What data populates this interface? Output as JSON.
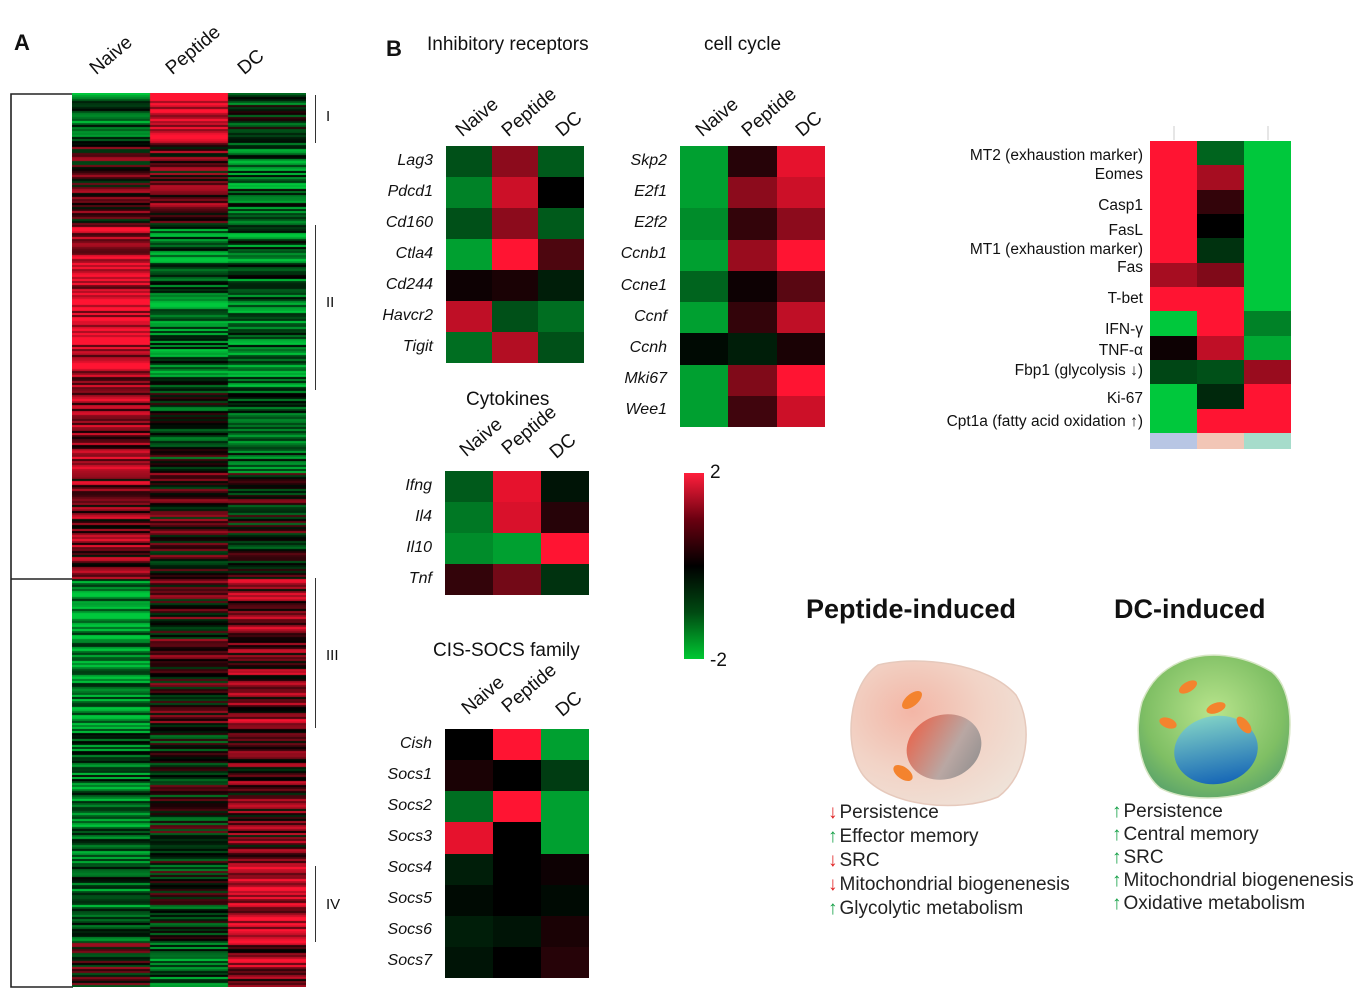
{
  "panel_a": {
    "letter": "A",
    "columns": [
      "Naive",
      "Peptide",
      "DC"
    ],
    "clusters": [
      "I",
      "II",
      "III",
      "IV"
    ]
  },
  "panel_b": {
    "letter": "B",
    "inhibitory": {
      "title": "Inhibitory receptors",
      "columns": [
        "Naive",
        "Peptide",
        "DC"
      ],
      "rows": [
        "Lag3",
        "Pdcd1",
        "Cd160",
        "Ctla4",
        "Cd244",
        "Havcr2",
        "Tigit"
      ],
      "values": [
        [
          -0.8,
          1.1,
          -0.9
        ],
        [
          -1.3,
          1.6,
          0.0
        ],
        [
          -0.8,
          1.1,
          -0.9
        ],
        [
          -1.6,
          2.0,
          0.6
        ],
        [
          0.1,
          0.2,
          -0.3
        ],
        [
          1.5,
          -0.8,
          -1.1
        ],
        [
          -1.1,
          1.4,
          -0.8
        ]
      ]
    },
    "cytokines": {
      "title": "Cytokines",
      "columns": [
        "Naive",
        "Peptide",
        "DC"
      ],
      "rows": [
        "Ifng",
        "Il4",
        "Il10",
        "Tnf"
      ],
      "values": [
        [
          -0.9,
          1.8,
          -0.2
        ],
        [
          -1.2,
          1.7,
          0.3
        ],
        [
          -1.4,
          -1.6,
          2.0
        ],
        [
          0.4,
          0.9,
          -0.5
        ]
      ]
    },
    "socs": {
      "title": "CIS-SOCS family",
      "columns": [
        "Naive",
        "Peptide",
        "DC"
      ],
      "rows": [
        "Cish",
        "Socs1",
        "Socs2",
        "Socs3",
        "Socs4",
        "Socs5",
        "Socs6",
        "Socs7"
      ],
      "values": [
        [
          0.0,
          2.0,
          -1.6
        ],
        [
          0.2,
          0.0,
          -0.6
        ],
        [
          -1.1,
          2.0,
          -1.6
        ],
        [
          1.8,
          0.0,
          -1.6
        ],
        [
          -0.3,
          0.0,
          0.1
        ],
        [
          -0.1,
          0.0,
          -0.1
        ],
        [
          -0.3,
          -0.2,
          0.2
        ],
        [
          -0.2,
          0.0,
          0.3
        ]
      ]
    },
    "cell_cycle": {
      "title": "cell cycle",
      "columns": [
        "Naive",
        "Peptide",
        "DC"
      ],
      "rows": [
        "Skp2",
        "E2f1",
        "E2f2",
        "Ccnb1",
        "Ccne1",
        "Ccnf",
        "Ccnh",
        "Mki67",
        "Wee1"
      ],
      "values": [
        [
          -1.6,
          0.3,
          1.8
        ],
        [
          -1.6,
          1.1,
          1.6
        ],
        [
          -1.4,
          0.4,
          1.1
        ],
        [
          -1.6,
          1.2,
          2.0
        ],
        [
          -1.0,
          0.1,
          0.7
        ],
        [
          -1.6,
          0.4,
          1.5
        ],
        [
          -0.1,
          -0.3,
          0.2
        ],
        [
          -1.6,
          1.0,
          2.0
        ],
        [
          -1.6,
          0.5,
          1.6
        ]
      ]
    },
    "colorbar": {
      "max_label": "2",
      "min_label": "-2",
      "min": -2,
      "max": 2,
      "colors": [
        "#00c832",
        "#000000",
        "#ff1f3c"
      ]
    }
  },
  "exhaustion_heatmap": {
    "labels": [
      "MT2  (exhaustion  marker)",
      "Eomes",
      "Casp1",
      "FasL",
      "MT1  (exhaustion  marker)",
      "Fas",
      "T-bet",
      "IFN-γ",
      "TNF-α",
      "Fbp1  (glycolysis ↓)",
      "Ki-67",
      "Cpt1a  (fatty acid oxidation  ↑)"
    ],
    "values": [
      [
        2.0,
        -1.0,
        -2.0
      ],
      [
        2.0,
        1.3,
        -2.0
      ],
      [
        2.0,
        0.4,
        -2.0
      ],
      [
        2.0,
        0.0,
        -2.0
      ],
      [
        2.0,
        -0.5,
        -2.0
      ],
      [
        1.3,
        1.0,
        -2.0
      ],
      [
        2.0,
        2.0,
        -2.0
      ],
      [
        -2.0,
        2.0,
        -1.3
      ],
      [
        0.1,
        1.5,
        -1.7
      ],
      [
        -0.7,
        -0.8,
        1.2
      ],
      [
        -2.0,
        -0.4,
        2.0
      ],
      [
        -2.0,
        2.0,
        2.0
      ]
    ],
    "footer_colors": [
      "#b8c6e4",
      "#f2c6b6",
      "#a6dccb"
    ]
  },
  "phenotypes": {
    "peptide": {
      "title": "Peptide-induced",
      "bullets": [
        {
          "dir": "down",
          "text": "Persistence"
        },
        {
          "dir": "up",
          "text": "Effector memory"
        },
        {
          "dir": "down",
          "text": "SRC"
        },
        {
          "dir": "down",
          "text": "Mitochondrial biogenenesis"
        },
        {
          "dir": "up",
          "text": "Glycolytic metabolism"
        }
      ]
    },
    "dc": {
      "title": "DC-induced",
      "bullets": [
        {
          "dir": "up",
          "text": "Persistence"
        },
        {
          "dir": "up",
          "text": "Central memory"
        },
        {
          "dir": "up",
          "text": "SRC"
        },
        {
          "dir": "up",
          "text": "Mitochondrial biogenenesis"
        },
        {
          "dir": "up",
          "text": "Oxidative metabolism"
        }
      ]
    },
    "arrow_up_glyph": "🡅",
    "arrow_down_glyph": "🡇"
  }
}
